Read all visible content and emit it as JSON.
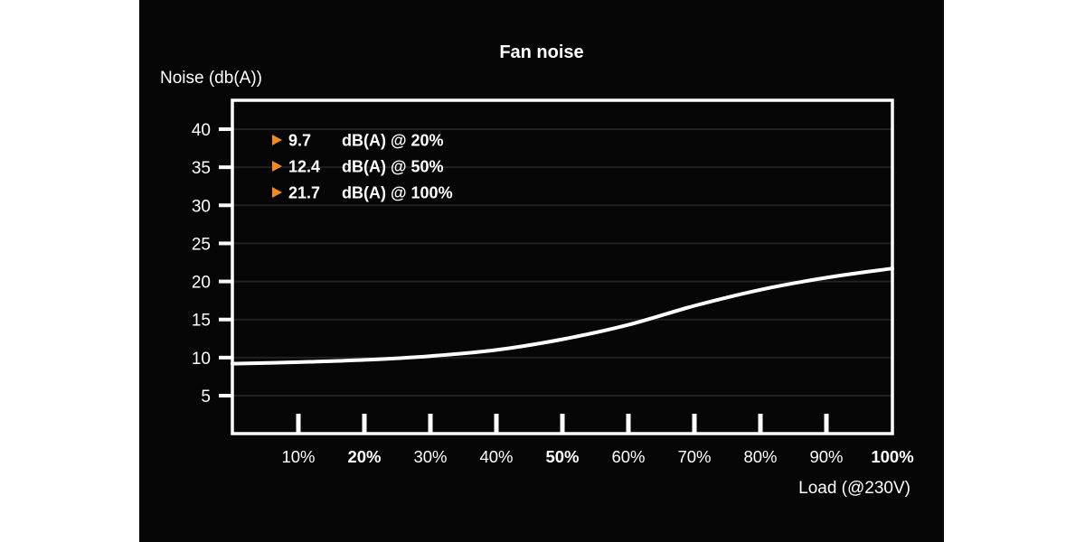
{
  "header": {
    "title": "Fan noise"
  },
  "chart_data": {
    "type": "line",
    "title": "Fan noise",
    "xlabel": "Load (@230V)",
    "ylabel": "Noise (db(A))",
    "x": [
      0,
      10,
      20,
      30,
      40,
      50,
      60,
      70,
      80,
      90,
      100
    ],
    "series": [
      {
        "name": "Fan noise",
        "values": [
          9.2,
          9.4,
          9.7,
          10.2,
          11.0,
          12.4,
          14.3,
          16.8,
          18.9,
          20.5,
          21.7
        ]
      }
    ],
    "x_tick_values": [
      10,
      20,
      30,
      40,
      50,
      60,
      70,
      80,
      90,
      100
    ],
    "x_tick_labels": [
      "10%",
      "20%",
      "30%",
      "40%",
      "50%",
      "60%",
      "70%",
      "80%",
      "90%",
      "100%"
    ],
    "x_ticks_bold": [
      "20%",
      "50%",
      "100%"
    ],
    "y_ticks": [
      5,
      10,
      15,
      20,
      25,
      30,
      35,
      40
    ],
    "xlim": [
      0,
      100
    ],
    "ylim": [
      0,
      43.8
    ],
    "grid": "horizontal-only",
    "legend_position": "top-left-inside",
    "annotations": [
      {
        "marker": "right-triangle-icon",
        "value": "9.7",
        "label": "dB(A) @ 20%"
      },
      {
        "marker": "right-triangle-icon",
        "value": "12.4",
        "label": "dB(A) @ 50%"
      },
      {
        "marker": "right-triangle-icon",
        "value": "21.7",
        "label": "dB(A) @ 100%"
      }
    ],
    "colors": {
      "page_background": "#ffffff",
      "background": "#060606",
      "line": "#ffffff",
      "axis": "#ffffff",
      "grid": "#212121",
      "text": "#ffffff",
      "marker_orange": "#f28a1d"
    }
  }
}
